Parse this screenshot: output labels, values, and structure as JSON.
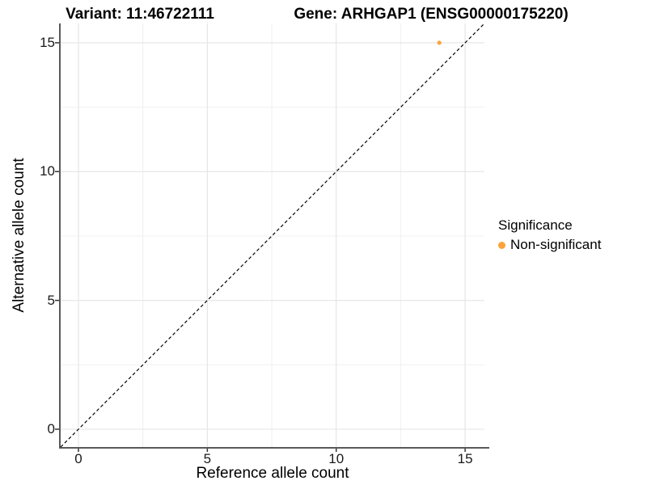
{
  "chart_data": {
    "type": "scatter",
    "title_left": "Variant: 11:46722111",
    "title_right": "Gene: ARHGAP1 (ENSG00000175220)",
    "xlabel": "Reference allele count",
    "ylabel": "Alternative allele count",
    "xlim": [
      -0.69,
      15.75
    ],
    "ylim": [
      -0.69,
      15.75
    ],
    "x_ticks": [
      0,
      5,
      10,
      15
    ],
    "y_ticks": [
      0,
      5,
      10,
      15
    ],
    "x_minor_ticks": [
      2.5,
      7.5,
      12.5
    ],
    "y_minor_ticks": [
      2.5,
      7.5,
      12.5
    ],
    "grid": "major+minor",
    "series": [
      {
        "name": "Non-significant",
        "color": "#FAA43A",
        "points": [
          {
            "x": 14,
            "y": 15
          }
        ]
      }
    ],
    "reference_line": {
      "type": "identity",
      "slope": 1,
      "intercept": 0,
      "style": "dashed",
      "color": "#000000"
    },
    "legend": {
      "title": "Significance",
      "position": "right",
      "items": [
        {
          "label": "Non-significant",
          "color": "#FAA43A"
        }
      ]
    }
  },
  "colors": {
    "background": "#FFFFFF",
    "grid_major": "#E4E4E4",
    "grid_minor": "#F0F0F0",
    "axis_line": "#595959",
    "tick_mark": "#333333",
    "reference_line": "#000000",
    "text": "#000000"
  }
}
